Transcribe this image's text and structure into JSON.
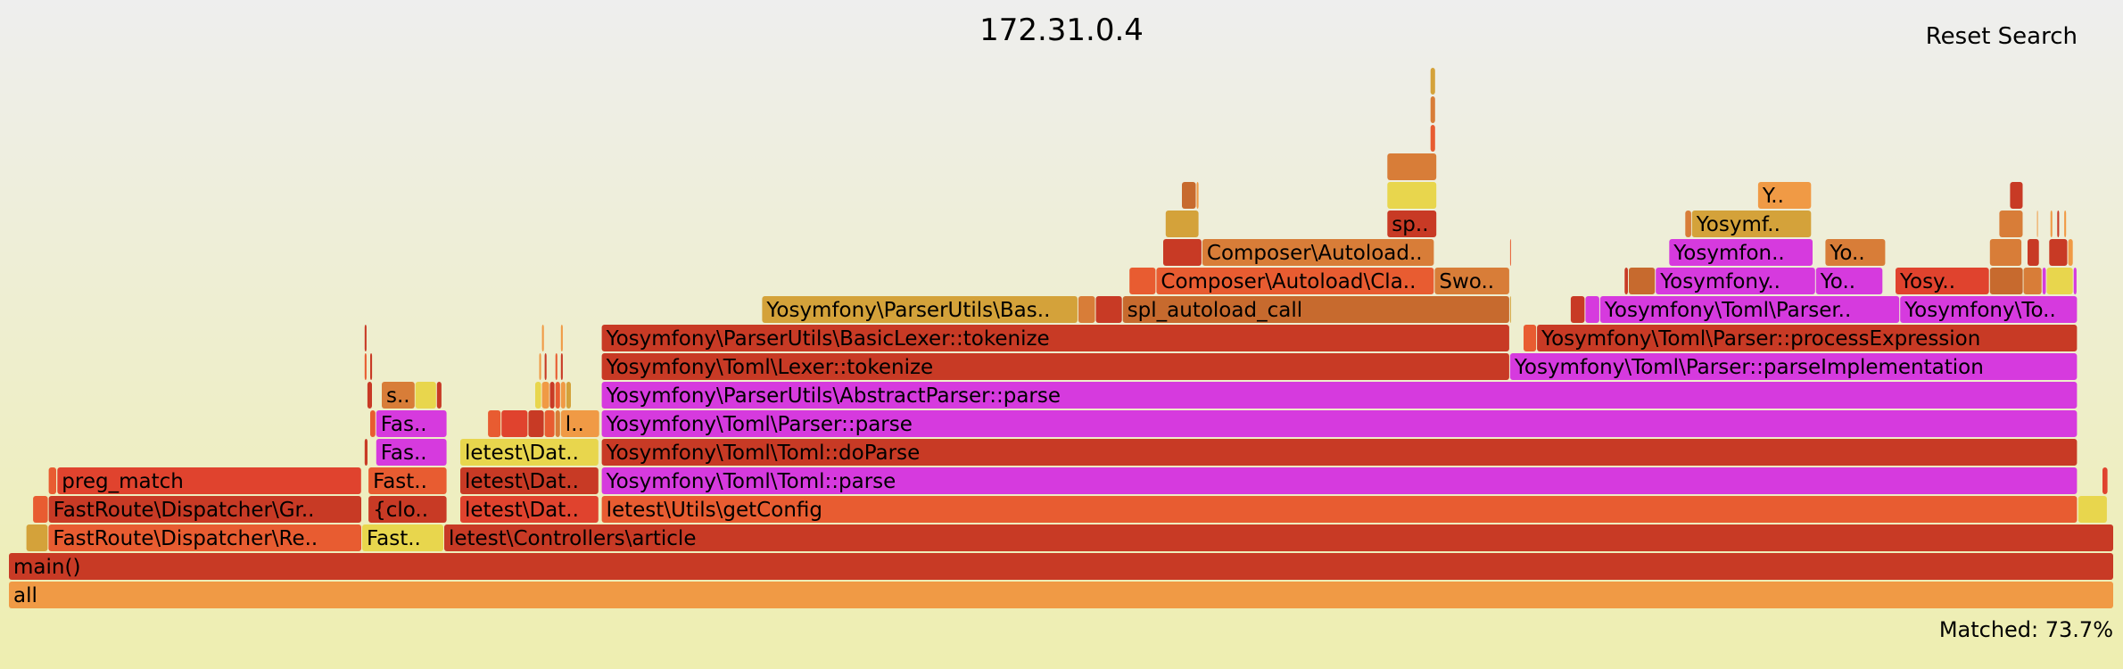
{
  "title": "172.31.0.4",
  "reset_label": "Reset Search",
  "matched_label": "Matched: 73.7%",
  "chart_data": {
    "type": "flamegraph",
    "unit": "fraction of total samples (start, width)",
    "colors": {
      "magenta": "#d63ade",
      "red": "#c83a25",
      "red_bright": "#e0432e",
      "orange_red": "#e85c31",
      "orange": "#f09a45",
      "dark_orange": "#d87d38",
      "brown_orange": "#c76a2e",
      "mustard": "#d4a23a",
      "yellow": "#e8d64d"
    },
    "frames": [
      {
        "depth": 0,
        "start": 0.0,
        "width": 1.0,
        "label": "all",
        "color": "orange"
      },
      {
        "depth": 1,
        "start": 0.0,
        "width": 1.0,
        "label": "main()",
        "color": "red"
      },
      {
        "depth": 2,
        "start": 0.0083,
        "width": 0.0105,
        "label": "",
        "color": "mustard"
      },
      {
        "depth": 2,
        "start": 0.0188,
        "width": 0.149,
        "label": "FastRoute\\Dispatcher\\Re..",
        "color": "orange_red"
      },
      {
        "depth": 2,
        "start": 0.1678,
        "width": 0.039,
        "label": "Fast..",
        "color": "yellow"
      },
      {
        "depth": 2,
        "start": 0.2068,
        "width": 0.7932,
        "label": "letest\\Controllers\\article",
        "color": "red"
      },
      {
        "depth": 3,
        "start": 0.0115,
        "width": 0.0074,
        "label": "",
        "color": "orange_red"
      },
      {
        "depth": 3,
        "start": 0.0189,
        "width": 0.1489,
        "label": "FastRoute\\Dispatcher\\Gr..",
        "color": "red"
      },
      {
        "depth": 3,
        "start": 0.1708,
        "width": 0.0375,
        "label": "{clo..",
        "color": "red"
      },
      {
        "depth": 3,
        "start": 0.2144,
        "width": 0.066,
        "label": "letest\\Dat..",
        "color": "red_bright"
      },
      {
        "depth": 3,
        "start": 0.2816,
        "width": 0.7012,
        "label": "letest\\Utils\\getConfig",
        "color": "orange_red"
      },
      {
        "depth": 3,
        "start": 0.983,
        "width": 0.014,
        "label": "",
        "color": "yellow"
      },
      {
        "depth": 4,
        "start": 0.0189,
        "width": 0.004,
        "label": "",
        "color": "orange_red"
      },
      {
        "depth": 4,
        "start": 0.023,
        "width": 0.1447,
        "label": "preg_match",
        "color": "red_bright"
      },
      {
        "depth": 4,
        "start": 0.1708,
        "width": 0.0375,
        "label": "Fast..",
        "color": "orange_red"
      },
      {
        "depth": 4,
        "start": 0.2144,
        "width": 0.066,
        "label": "letest\\Dat..",
        "color": "red"
      },
      {
        "depth": 4,
        "start": 0.2816,
        "width": 0.7012,
        "label": "Yosymfony\\Toml\\Toml::parse",
        "color": "magenta"
      },
      {
        "depth": 4,
        "start": 0.9945,
        "width": 0.0028,
        "label": "",
        "color": "red_bright"
      },
      {
        "depth": 5,
        "start": 0.169,
        "width": 0.0018,
        "label": "",
        "color": "red"
      },
      {
        "depth": 5,
        "start": 0.1745,
        "width": 0.0338,
        "label": "Fas..",
        "color": "magenta"
      },
      {
        "depth": 5,
        "start": 0.2144,
        "width": 0.066,
        "label": "letest\\Dat..",
        "color": "yellow"
      },
      {
        "depth": 5,
        "start": 0.2816,
        "width": 0.7012,
        "label": "Yosymfony\\Toml\\Toml::doParse",
        "color": "red"
      },
      {
        "depth": 6,
        "start": 0.1716,
        "width": 0.0029,
        "label": "",
        "color": "orange_red"
      },
      {
        "depth": 6,
        "start": 0.1745,
        "width": 0.0338,
        "label": "Fas..",
        "color": "magenta"
      },
      {
        "depth": 6,
        "start": 0.2276,
        "width": 0.0064,
        "label": "",
        "color": "orange_red"
      },
      {
        "depth": 6,
        "start": 0.234,
        "width": 0.0128,
        "label": "",
        "color": "red_bright"
      },
      {
        "depth": 6,
        "start": 0.2468,
        "width": 0.0077,
        "label": "",
        "color": "red"
      },
      {
        "depth": 6,
        "start": 0.2545,
        "width": 0.0051,
        "label": "",
        "color": "orange_red"
      },
      {
        "depth": 6,
        "start": 0.2596,
        "width": 0.0026,
        "label": "",
        "color": "dark_orange"
      },
      {
        "depth": 6,
        "start": 0.2622,
        "width": 0.0186,
        "label": "l..",
        "color": "orange"
      },
      {
        "depth": 6,
        "start": 0.2816,
        "width": 0.7012,
        "label": "Yosymfony\\Toml\\Parser::parse",
        "color": "magenta"
      },
      {
        "depth": 7,
        "start": 0.1703,
        "width": 0.0026,
        "label": "",
        "color": "red"
      },
      {
        "depth": 7,
        "start": 0.1771,
        "width": 0.016,
        "label": "s..",
        "color": "dark_orange"
      },
      {
        "depth": 7,
        "start": 0.1931,
        "width": 0.0102,
        "label": "",
        "color": "yellow"
      },
      {
        "depth": 7,
        "start": 0.2033,
        "width": 0.0026,
        "label": "",
        "color": "red"
      },
      {
        "depth": 7,
        "start": 0.25,
        "width": 0.0032,
        "label": "",
        "color": "yellow"
      },
      {
        "depth": 7,
        "start": 0.2532,
        "width": 0.0038,
        "label": "",
        "color": "orange"
      },
      {
        "depth": 7,
        "start": 0.257,
        "width": 0.0026,
        "label": "",
        "color": "red"
      },
      {
        "depth": 7,
        "start": 0.2596,
        "width": 0.0026,
        "label": "",
        "color": "orange_red"
      },
      {
        "depth": 7,
        "start": 0.2622,
        "width": 0.0026,
        "label": "",
        "color": "orange"
      },
      {
        "depth": 7,
        "start": 0.2648,
        "width": 0.0026,
        "label": "",
        "color": "mustard"
      },
      {
        "depth": 7,
        "start": 0.2816,
        "width": 0.7012,
        "label": "Yosymfony\\ParserUtils\\AbstractParser::parse",
        "color": "magenta"
      },
      {
        "depth": 8,
        "start": 0.169,
        "width": 0.0013,
        "label": "",
        "color": "orange_red"
      },
      {
        "depth": 8,
        "start": 0.1716,
        "width": 0.0013,
        "label": "",
        "color": "red"
      },
      {
        "depth": 8,
        "start": 0.2519,
        "width": 0.0013,
        "label": "",
        "color": "orange"
      },
      {
        "depth": 8,
        "start": 0.2545,
        "width": 0.0013,
        "label": "",
        "color": "red"
      },
      {
        "depth": 8,
        "start": 0.2596,
        "width": 0.0013,
        "label": "",
        "color": "orange_red"
      },
      {
        "depth": 8,
        "start": 0.2622,
        "width": 0.0013,
        "label": "",
        "color": "red"
      },
      {
        "depth": 8,
        "start": 0.2816,
        "width": 0.4315,
        "label": "Yosymfony\\Toml\\Lexer::tokenize",
        "color": "red"
      },
      {
        "depth": 8,
        "start": 0.7131,
        "width": 0.2697,
        "label": "Yosymfony\\Toml\\Parser::parseImplementation",
        "color": "magenta"
      },
      {
        "depth": 9,
        "start": 0.169,
        "width": 0.0013,
        "label": "",
        "color": "red"
      },
      {
        "depth": 9,
        "start": 0.2532,
        "width": 0.0013,
        "label": "",
        "color": "orange"
      },
      {
        "depth": 9,
        "start": 0.2622,
        "width": 0.0013,
        "label": "",
        "color": "orange"
      },
      {
        "depth": 9,
        "start": 0.2816,
        "width": 0.4315,
        "label": "Yosymfony\\ParserUtils\\BasicLexer::tokenize",
        "color": "red"
      },
      {
        "depth": 9,
        "start": 0.7195,
        "width": 0.0064,
        "label": "",
        "color": "orange_red"
      },
      {
        "depth": 9,
        "start": 0.7259,
        "width": 0.2569,
        "label": "Yosymfony\\Toml\\Parser::processExpression",
        "color": "red"
      },
      {
        "depth": 10,
        "start": 0.3578,
        "width": 0.1502,
        "label": "Yosymfony\\ParserUtils\\Bas..",
        "color": "mustard"
      },
      {
        "depth": 10,
        "start": 0.508,
        "width": 0.0083,
        "label": "",
        "color": "dark_orange"
      },
      {
        "depth": 10,
        "start": 0.5163,
        "width": 0.0128,
        "label": "",
        "color": "red"
      },
      {
        "depth": 10,
        "start": 0.5291,
        "width": 0.184,
        "label": "spl_autoload_call",
        "color": "brown_orange"
      },
      {
        "depth": 10,
        "start": 0.7131,
        "width": 0.0005,
        "label": "",
        "color": "mustard"
      },
      {
        "depth": 10,
        "start": 0.7419,
        "width": 0.007,
        "label": "",
        "color": "red"
      },
      {
        "depth": 10,
        "start": 0.7489,
        "width": 0.007,
        "label": "",
        "color": "magenta"
      },
      {
        "depth": 10,
        "start": 0.7559,
        "width": 0.1425,
        "label": "Yosymfony\\Toml\\Parser..",
        "color": "magenta"
      },
      {
        "depth": 10,
        "start": 0.8984,
        "width": 0.0844,
        "label": "Yosymfony\\To..",
        "color": "magenta"
      },
      {
        "depth": 11,
        "start": 0.5323,
        "width": 0.0128,
        "label": "",
        "color": "orange_red"
      },
      {
        "depth": 11,
        "start": 0.5451,
        "width": 0.1322,
        "label": "Composer\\Autoload\\Cla..",
        "color": "orange_red"
      },
      {
        "depth": 11,
        "start": 0.6773,
        "width": 0.0358,
        "label": "Swo..",
        "color": "dark_orange"
      },
      {
        "depth": 11,
        "start": 0.7675,
        "width": 0.002,
        "label": "",
        "color": "red"
      },
      {
        "depth": 11,
        "start": 0.7695,
        "width": 0.0128,
        "label": "",
        "color": "brown_orange"
      },
      {
        "depth": 11,
        "start": 0.7823,
        "width": 0.0761,
        "label": "Yosymfony..",
        "color": "magenta"
      },
      {
        "depth": 11,
        "start": 0.8584,
        "width": 0.032,
        "label": "Yo..",
        "color": "magenta"
      },
      {
        "depth": 11,
        "start": 0.8962,
        "width": 0.0448,
        "label": "Yosy..",
        "color": "red_bright"
      },
      {
        "depth": 11,
        "start": 0.941,
        "width": 0.016,
        "label": "",
        "color": "brown_orange"
      },
      {
        "depth": 11,
        "start": 0.957,
        "width": 0.009,
        "label": "",
        "color": "dark_orange"
      },
      {
        "depth": 11,
        "start": 0.966,
        "width": 0.002,
        "label": "",
        "color": "magenta"
      },
      {
        "depth": 11,
        "start": 0.968,
        "width": 0.0128,
        "label": "",
        "color": "yellow"
      },
      {
        "depth": 11,
        "start": 0.9808,
        "width": 0.0018,
        "label": "",
        "color": "magenta"
      },
      {
        "depth": 12,
        "start": 0.5483,
        "width": 0.0186,
        "label": "",
        "color": "red"
      },
      {
        "depth": 12,
        "start": 0.5669,
        "width": 0.1104,
        "label": "Composer\\Autoload..",
        "color": "dark_orange"
      },
      {
        "depth": 12,
        "start": 0.7131,
        "width": 0.0005,
        "label": "",
        "color": "orange_red"
      },
      {
        "depth": 12,
        "start": 0.7887,
        "width": 0.0685,
        "label": "Yosymfon..",
        "color": "magenta"
      },
      {
        "depth": 12,
        "start": 0.8629,
        "width": 0.0288,
        "label": "Yo..",
        "color": "dark_orange"
      },
      {
        "depth": 12,
        "start": 0.941,
        "width": 0.0154,
        "label": "",
        "color": "dark_orange"
      },
      {
        "depth": 12,
        "start": 0.9589,
        "width": 0.0058,
        "label": "",
        "color": "red"
      },
      {
        "depth": 12,
        "start": 0.9692,
        "width": 0.009,
        "label": "",
        "color": "red"
      },
      {
        "depth": 12,
        "start": 0.9782,
        "width": 0.0026,
        "label": "",
        "color": "orange"
      },
      {
        "depth": 13,
        "start": 0.5495,
        "width": 0.016,
        "label": "",
        "color": "mustard"
      },
      {
        "depth": 13,
        "start": 0.6548,
        "width": 0.0237,
        "label": "sp..",
        "color": "red"
      },
      {
        "depth": 13,
        "start": 0.7963,
        "width": 0.0032,
        "label": "",
        "color": "dark_orange"
      },
      {
        "depth": 13,
        "start": 0.7995,
        "width": 0.057,
        "label": "Yosymf..",
        "color": "mustard"
      },
      {
        "depth": 13,
        "start": 0.9455,
        "width": 0.0115,
        "label": "",
        "color": "dark_orange"
      },
      {
        "depth": 13,
        "start": 0.9634,
        "width": 0.0006,
        "label": "",
        "color": "orange"
      },
      {
        "depth": 13,
        "start": 0.9698,
        "width": 0.0013,
        "label": "",
        "color": "orange"
      },
      {
        "depth": 13,
        "start": 0.973,
        "width": 0.0013,
        "label": "",
        "color": "red"
      },
      {
        "depth": 13,
        "start": 0.9763,
        "width": 0.0013,
        "label": "",
        "color": "orange"
      },
      {
        "depth": 14,
        "start": 0.5572,
        "width": 0.007,
        "label": "",
        "color": "brown_orange"
      },
      {
        "depth": 14,
        "start": 0.5642,
        "width": 0.0013,
        "label": "",
        "color": "orange"
      },
      {
        "depth": 14,
        "start": 0.6548,
        "width": 0.0237,
        "label": "",
        "color": "yellow"
      },
      {
        "depth": 14,
        "start": 0.8309,
        "width": 0.0256,
        "label": "Y..",
        "color": "orange"
      },
      {
        "depth": 14,
        "start": 0.9506,
        "width": 0.0064,
        "label": "",
        "color": "red"
      },
      {
        "depth": 15,
        "start": 0.6548,
        "width": 0.0237,
        "label": "",
        "color": "dark_orange"
      },
      {
        "depth": 16,
        "start": 0.6753,
        "width": 0.0026,
        "label": "",
        "color": "orange_red"
      },
      {
        "depth": 17,
        "start": 0.6753,
        "width": 0.0026,
        "label": "",
        "color": "dark_orange"
      },
      {
        "depth": 18,
        "start": 0.6753,
        "width": 0.0026,
        "label": "",
        "color": "mustard"
      }
    ]
  }
}
